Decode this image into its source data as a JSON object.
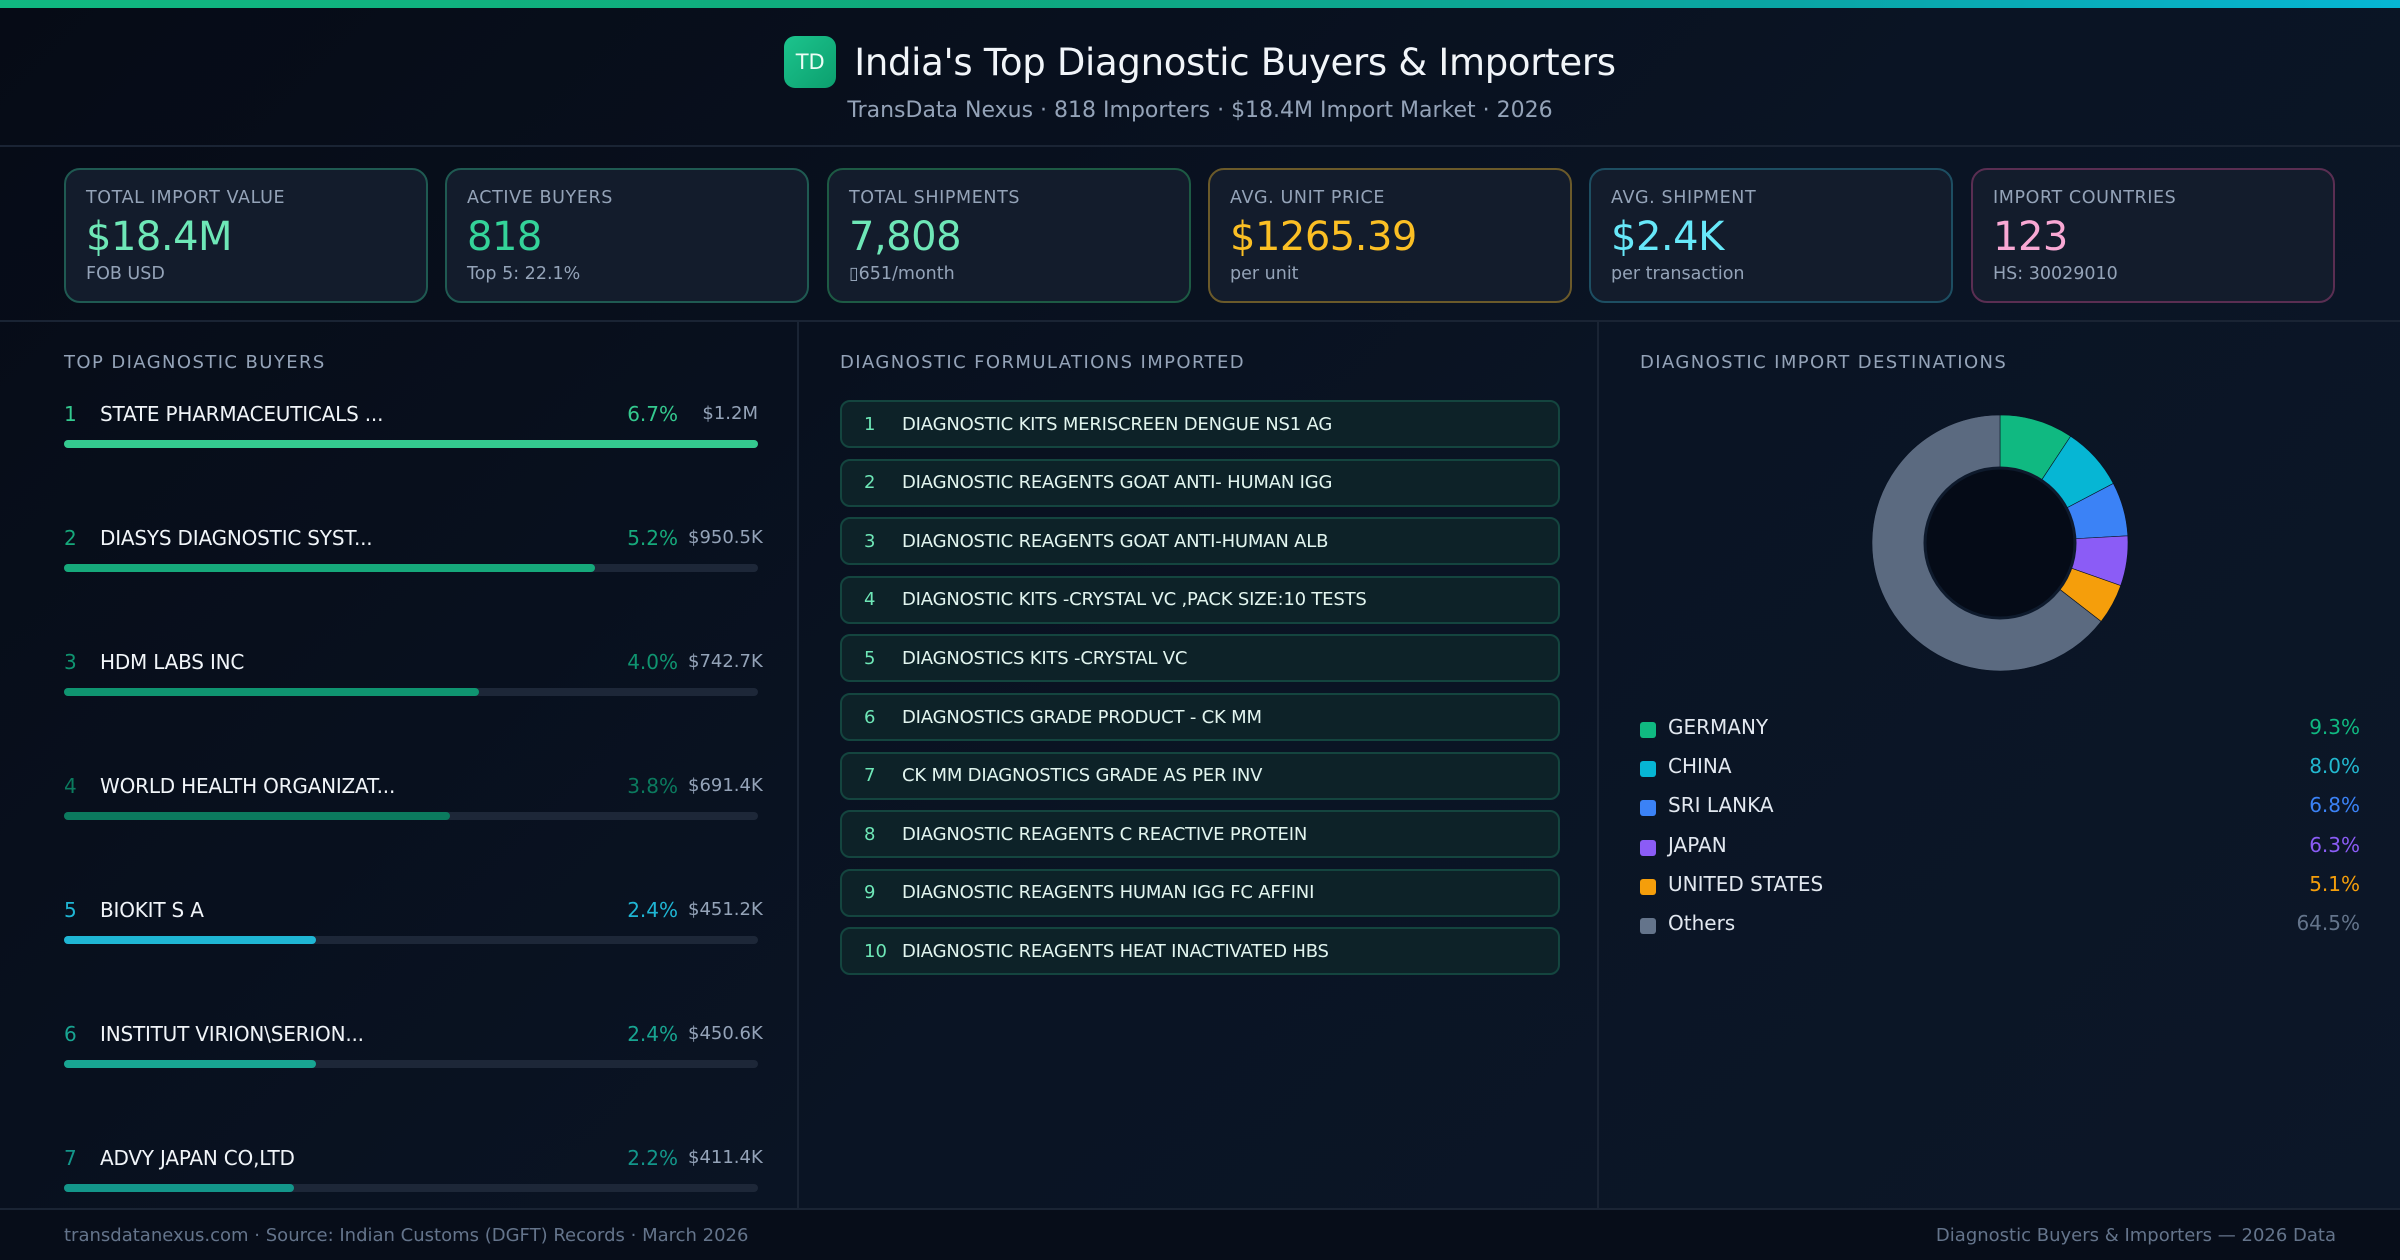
{
  "header": {
    "logo_text": "TD",
    "title": "India's Top Diagnostic Buyers & Importers",
    "subtitle": "TransData Nexus · 818 Importers · $18.4M Import Market · 2026"
  },
  "stats": [
    {
      "label": "TOTAL IMPORT VALUE",
      "value": "$18.4M",
      "sub": "FOB USD",
      "color": "#6ee7b7",
      "border": "#1f5a52"
    },
    {
      "label": "ACTIVE BUYERS",
      "value": "818",
      "sub": "Top 5: 22.1%",
      "color": "#34d399",
      "border": "#1f5a52"
    },
    {
      "label": "TOTAL SHIPMENTS",
      "value": "7,808",
      "sub": "▯651/month",
      "color": "#6ee7b7",
      "border": "#1d5a44"
    },
    {
      "label": "AVG. UNIT PRICE",
      "value": "$1265.39",
      "sub": "per unit",
      "color": "#fbbf24",
      "border": "#6b5a2a"
    },
    {
      "label": "AVG. SHIPMENT",
      "value": "$2.4K",
      "sub": "per transaction",
      "color": "#67e8f9",
      "border": "#1d4e62"
    },
    {
      "label": "IMPORT COUNTRIES",
      "value": "123",
      "sub": "HS: 30029010",
      "color": "#f9a8d4",
      "border": "#5a2e52"
    }
  ],
  "buyers": {
    "title": "TOP DIAGNOSTIC BUYERS",
    "items": [
      {
        "rank": "1",
        "name": "STATE  PHARMACEUTICALS ...",
        "pct": "6.7%",
        "amount": "$1.2M",
        "bar": 100,
        "color": "#34c98f"
      },
      {
        "rank": "2",
        "name": "DIASYS DIAGNOSTIC SYST...",
        "pct": "5.2%",
        "amount": "$950.5K",
        "bar": 76.5,
        "color": "#16a97b"
      },
      {
        "rank": "3",
        "name": "HDM LABS INC",
        "pct": "4.0%",
        "amount": "$742.7K",
        "bar": 59.8,
        "color": "#0f9470"
      },
      {
        "rank": "4",
        "name": "WORLD HEALTH ORGANIZAT...",
        "pct": "3.8%",
        "amount": "$691.4K",
        "bar": 55.6,
        "color": "#0b7a5e"
      },
      {
        "rank": "5",
        "name": "BIOKIT S A",
        "pct": "2.4%",
        "amount": "$451.2K",
        "bar": 36.3,
        "color": "#1fb6d4"
      },
      {
        "rank": "6",
        "name": "INSTITUT VIRION\\SERION...",
        "pct": "2.4%",
        "amount": "$450.6K",
        "bar": 36.3,
        "color": "#18a592"
      },
      {
        "rank": "7",
        "name": "ADVY JAPAN  CO,LTD",
        "pct": "2.2%",
        "amount": "$411.4K",
        "bar": 33.1,
        "color": "#13968a"
      }
    ]
  },
  "formulations": {
    "title": "DIAGNOSTIC FORMULATIONS IMPORTED",
    "items": [
      {
        "num": "1",
        "text": "DIAGNOSTIC KITS MERISCREEN DENGUE NS1 AG"
      },
      {
        "num": "2",
        "text": "DIAGNOSTIC REAGENTS GOAT ANTI- HUMAN IGG"
      },
      {
        "num": "3",
        "text": "DIAGNOSTIC REAGENTS GOAT ANTI-HUMAN ALB"
      },
      {
        "num": "4",
        "text": "DIAGNOSTIC KITS -CRYSTAL VC ,PACK SIZE:10 TESTS"
      },
      {
        "num": "5",
        "text": "DIAGNOSTICS KITS -CRYSTAL VC"
      },
      {
        "num": "6",
        "text": "DIAGNOSTICS GRADE PRODUCT - CK MM"
      },
      {
        "num": "7",
        "text": "CK MM DIAGNOSTICS GRADE AS PER INV"
      },
      {
        "num": "8",
        "text": "DIAGNOSTIC REAGENTS C REACTIVE PROTEIN"
      },
      {
        "num": "9",
        "text": "DIAGNOSTIC REAGENTS HUMAN IGG FC AFFINI"
      },
      {
        "num": "10",
        "text": "DIAGNOSTIC REAGENTS HEAT INACTIVATED  HBS"
      }
    ]
  },
  "destinations": {
    "title": "DIAGNOSTIC IMPORT DESTINATIONS"
  },
  "chart_data": {
    "type": "pie",
    "title": "DIAGNOSTIC IMPORT DESTINATIONS",
    "donut": true,
    "categories": [
      "GERMANY",
      "CHINA",
      "SRI LANKA",
      "JAPAN",
      "UNITED STATES",
      "Others"
    ],
    "values": [
      9.3,
      8.0,
      6.8,
      6.3,
      5.1,
      64.5
    ],
    "labels": [
      "9.3%",
      "8.0%",
      "6.8%",
      "6.3%",
      "5.1%",
      "64.5%"
    ],
    "colors": [
      "#10b981",
      "#06b6d4",
      "#3b82f6",
      "#8b5cf6",
      "#f59e0b",
      "#5b6a80"
    ],
    "legend_colors": [
      "#10b981",
      "#06b6d4",
      "#3b82f6",
      "#8b5cf6",
      "#f59e0b",
      "#64748b"
    ],
    "pct_colors": [
      "#10b981",
      "#22b8cf",
      "#3b82f6",
      "#8b5cf6",
      "#f59e0b",
      "#64748b"
    ],
    "legend_position": "bottom"
  },
  "footer": {
    "left": "transdatanexus.com · Source: Indian Customs (DGFT) Records · March 2026",
    "right": "Diagnostic Buyers & Importers — 2026 Data"
  }
}
